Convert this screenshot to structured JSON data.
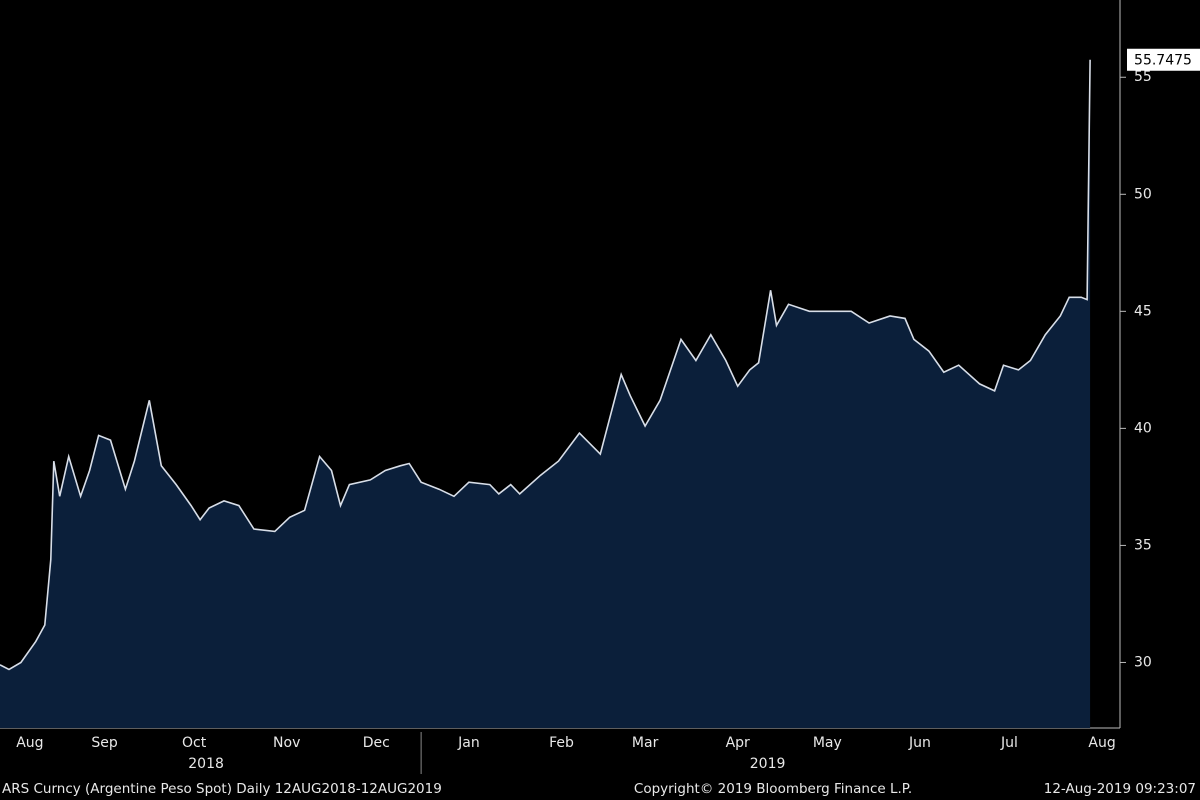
{
  "chart_data": {
    "type": "area",
    "x": [
      0,
      3,
      7,
      12,
      15,
      17,
      18,
      20,
      23,
      27,
      30,
      33,
      37,
      42,
      45,
      50,
      54,
      59,
      64,
      67,
      70,
      75,
      80,
      85,
      92,
      97,
      102,
      107,
      111,
      114,
      117,
      124,
      129,
      134,
      137,
      141,
      147,
      152,
      157,
      164,
      167,
      171,
      174,
      181,
      187,
      194,
      201,
      208,
      211,
      216,
      221,
      228,
      233,
      238,
      243,
      247,
      251,
      254,
      258,
      260,
      264,
      271,
      278,
      285,
      291,
      298,
      303,
      306,
      311,
      316,
      321,
      328,
      333,
      336,
      341,
      345,
      350,
      355,
      358,
      362,
      364,
      365
    ],
    "values": [
      29.9,
      29.7,
      30.0,
      30.9,
      31.6,
      34.4,
      38.6,
      37.1,
      38.8,
      37.1,
      38.2,
      39.7,
      39.5,
      37.4,
      38.6,
      41.2,
      38.4,
      37.6,
      36.7,
      36.1,
      36.6,
      36.9,
      36.7,
      35.7,
      35.6,
      36.2,
      36.5,
      38.8,
      38.2,
      36.7,
      37.6,
      37.8,
      38.2,
      38.4,
      38.5,
      37.7,
      37.4,
      37.1,
      37.7,
      37.6,
      37.2,
      37.6,
      37.2,
      38.0,
      38.6,
      39.8,
      38.9,
      42.3,
      41.4,
      40.1,
      41.2,
      43.8,
      42.9,
      44.0,
      42.9,
      41.8,
      42.5,
      42.8,
      45.9,
      44.4,
      45.3,
      45.0,
      45.0,
      45.0,
      44.5,
      44.8,
      44.7,
      43.8,
      43.3,
      42.4,
      42.7,
      41.9,
      41.6,
      42.7,
      42.5,
      42.9,
      44.0,
      44.8,
      45.6,
      45.6,
      45.5,
      55.7475
    ],
    "color": "#0b1f3a",
    "line_color": "#d8dee8",
    "xlim": [
      0,
      375
    ],
    "xticks": [
      {
        "value": 10,
        "label": "Aug"
      },
      {
        "value": 35,
        "label": "Sep"
      },
      {
        "value": 65,
        "label": "Oct"
      },
      {
        "value": 96,
        "label": "Nov"
      },
      {
        "value": 126,
        "label": "Dec"
      },
      {
        "value": 157,
        "label": "Jan"
      },
      {
        "value": 188,
        "label": "Feb"
      },
      {
        "value": 216,
        "label": "Mar"
      },
      {
        "value": 247,
        "label": "Apr"
      },
      {
        "value": 277,
        "label": "May"
      },
      {
        "value": 308,
        "label": "Jun"
      },
      {
        "value": 338,
        "label": "Jul"
      },
      {
        "value": 369,
        "label": "Aug"
      }
    ],
    "year_labels": [
      {
        "value": 69,
        "label": "2018"
      },
      {
        "value": 257,
        "label": "2019"
      }
    ],
    "year_divider": 141,
    "ylim": [
      27.2,
      58.3
    ],
    "yticks": [
      30,
      35,
      40,
      45,
      50,
      55
    ],
    "footer": [
      "ARS Curncy (Argentine Peso Spot)  Daily 12AUG2018-12AUG2019",
      "Copyright© 2019 Bloomberg Finance L.P.",
      "12-Aug-2019 09:23:07"
    ]
  }
}
